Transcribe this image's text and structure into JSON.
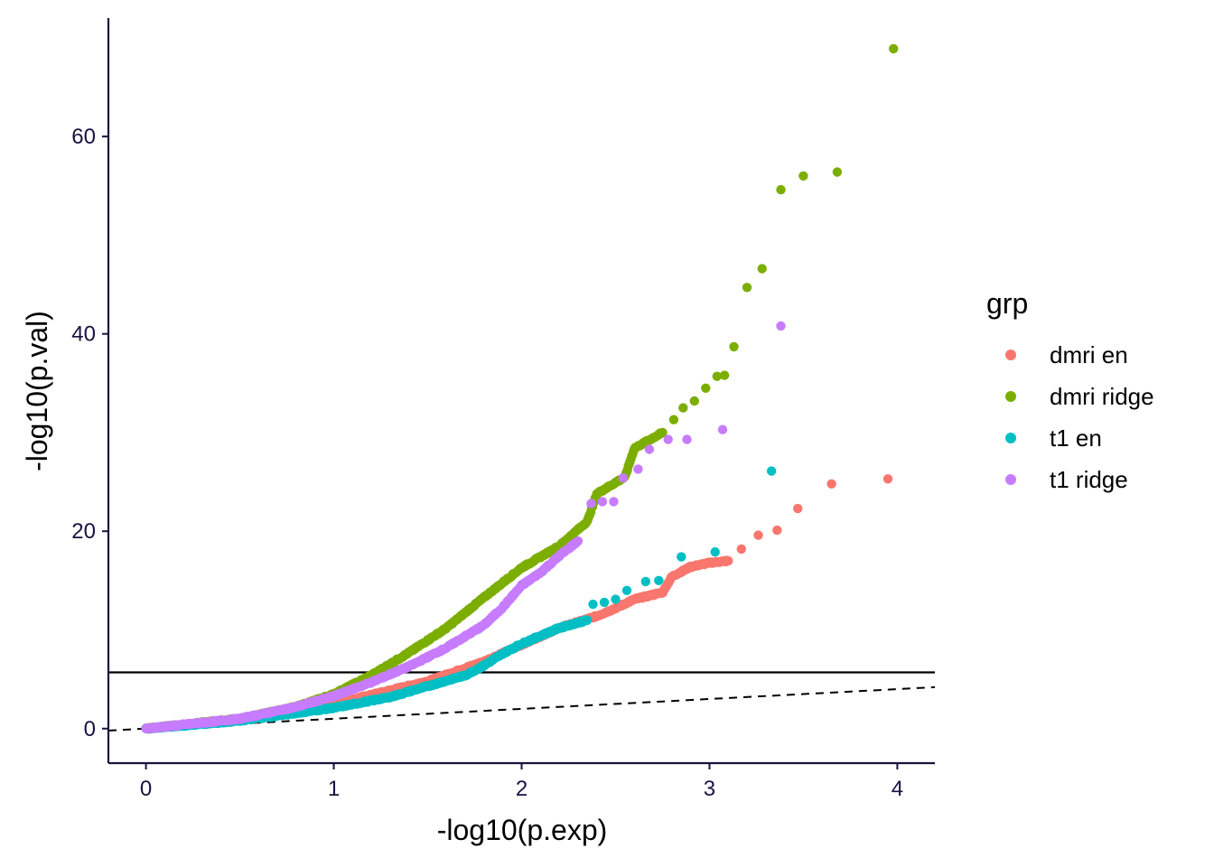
{
  "chart_data": {
    "type": "scatter",
    "xlabel": "-log10(p.exp)",
    "ylabel": "-log10(p.val)",
    "xlim": [
      -0.2,
      4.2
    ],
    "ylim": [
      -3.5,
      72
    ],
    "x_ticks": [
      0,
      1,
      2,
      3,
      4
    ],
    "y_ticks": [
      0,
      20,
      40,
      60
    ],
    "grid": false,
    "reference_lines": [
      {
        "kind": "horizontal",
        "y": 5.7,
        "style": "solid"
      },
      {
        "kind": "diagonal",
        "slope": 1,
        "intercept": 0,
        "style": "dashed"
      }
    ],
    "legend": {
      "title": "grp",
      "position": "right"
    },
    "series": [
      {
        "name": "dmri en",
        "color": "#F8766D",
        "curve": [
          [
            0,
            0
          ],
          [
            0.5,
            0.9
          ],
          [
            1.0,
            2.5
          ],
          [
            1.5,
            4.8
          ],
          [
            1.8,
            6.8
          ],
          [
            2.0,
            8.5
          ],
          [
            2.2,
            10.2
          ],
          [
            2.4,
            11.4
          ],
          [
            2.5,
            12.2
          ],
          [
            2.6,
            13.1
          ],
          [
            2.75,
            13.8
          ],
          [
            2.8,
            15.4
          ],
          [
            2.9,
            16.4
          ],
          [
            3.0,
            16.8
          ],
          [
            3.1,
            17.0
          ]
        ],
        "outliers": [
          [
            3.17,
            18.2
          ],
          [
            3.26,
            19.6
          ],
          [
            3.36,
            20.1
          ],
          [
            3.47,
            22.3
          ],
          [
            3.65,
            24.8
          ],
          [
            3.95,
            25.3
          ]
        ]
      },
      {
        "name": "dmri ridge",
        "color": "#7CAE00",
        "curve": [
          [
            0,
            0
          ],
          [
            0.5,
            1.0
          ],
          [
            0.8,
            2.2
          ],
          [
            1.0,
            3.5
          ],
          [
            1.2,
            5.4
          ],
          [
            1.4,
            7.7
          ],
          [
            1.6,
            10.2
          ],
          [
            1.8,
            13.3
          ],
          [
            2.0,
            16.3
          ],
          [
            2.2,
            18.5
          ],
          [
            2.35,
            21.0
          ],
          [
            2.4,
            23.8
          ],
          [
            2.55,
            25.5
          ],
          [
            2.6,
            28.4
          ],
          [
            2.75,
            30.0
          ]
        ],
        "outliers": [
          [
            2.81,
            31.3
          ],
          [
            2.86,
            32.5
          ],
          [
            2.92,
            33.2
          ],
          [
            2.98,
            34.5
          ],
          [
            3.04,
            35.7
          ],
          [
            3.08,
            35.8
          ],
          [
            3.13,
            38.7
          ],
          [
            3.2,
            44.7
          ],
          [
            3.28,
            46.6
          ],
          [
            3.38,
            54.6
          ],
          [
            3.5,
            56.0
          ],
          [
            3.68,
            56.4
          ],
          [
            3.98,
            68.9
          ]
        ]
      },
      {
        "name": "t1 en",
        "color": "#00BFC4",
        "curve": [
          [
            0,
            0
          ],
          [
            0.5,
            0.8
          ],
          [
            1.0,
            2.1
          ],
          [
            1.3,
            3.2
          ],
          [
            1.5,
            4.3
          ],
          [
            1.7,
            5.4
          ],
          [
            1.8,
            6.4
          ],
          [
            1.9,
            7.6
          ],
          [
            2.0,
            8.6
          ],
          [
            2.2,
            10.2
          ],
          [
            2.35,
            11.0
          ]
        ],
        "outliers": [
          [
            2.38,
            12.6
          ],
          [
            2.44,
            12.8
          ],
          [
            2.5,
            13.1
          ],
          [
            2.56,
            14.0
          ],
          [
            2.66,
            14.9
          ],
          [
            2.73,
            15.0
          ],
          [
            2.85,
            17.4
          ],
          [
            3.03,
            17.9
          ],
          [
            3.33,
            26.1
          ]
        ]
      },
      {
        "name": "t1 ridge",
        "color": "#C77CFF",
        "curve": [
          [
            0,
            0
          ],
          [
            0.5,
            1.0
          ],
          [
            0.8,
            2.2
          ],
          [
            1.0,
            3.3
          ],
          [
            1.2,
            4.7
          ],
          [
            1.4,
            6.3
          ],
          [
            1.6,
            8.2
          ],
          [
            1.8,
            10.5
          ],
          [
            1.9,
            12.3
          ],
          [
            2.0,
            14.5
          ],
          [
            2.1,
            15.8
          ],
          [
            2.2,
            17.5
          ],
          [
            2.3,
            19.0
          ]
        ],
        "outliers": [
          [
            2.37,
            22.8
          ],
          [
            2.43,
            23.0
          ],
          [
            2.49,
            23.0
          ],
          [
            2.54,
            25.4
          ],
          [
            2.62,
            26.3
          ],
          [
            2.68,
            28.3
          ],
          [
            2.78,
            29.3
          ],
          [
            2.88,
            29.3
          ],
          [
            3.07,
            30.3
          ],
          [
            3.38,
            40.8
          ]
        ]
      }
    ]
  }
}
